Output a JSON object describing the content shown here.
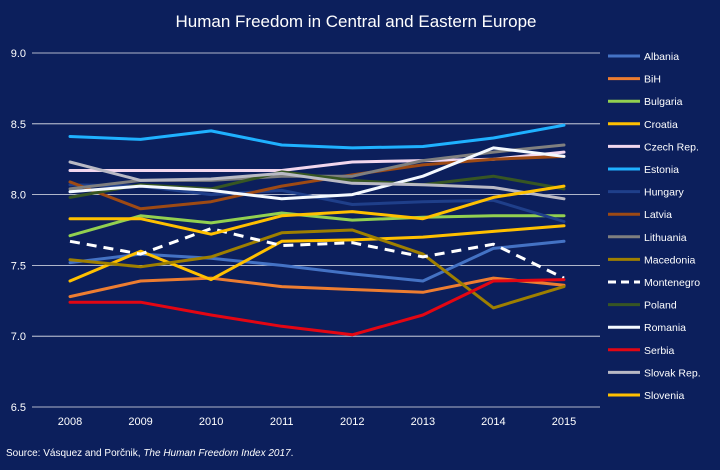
{
  "chart_data": {
    "type": "line",
    "title": "Human Freedom in Central and Eastern Europe",
    "x": [
      "2008",
      "2009",
      "2010",
      "2011",
      "2012",
      "2013",
      "2014",
      "2015"
    ],
    "ylim": [
      6.5,
      9.0
    ],
    "yticks": [
      "6.5",
      "7.0",
      "7.5",
      "8.0",
      "8.5",
      "9.0"
    ],
    "grid": true,
    "legend_position": "right",
    "series": [
      {
        "name": "Albania",
        "color": "#4472c4",
        "dash": false,
        "values": [
          7.52,
          7.58,
          7.55,
          7.5,
          7.44,
          7.39,
          7.62,
          7.67
        ]
      },
      {
        "name": "BiH",
        "color": "#ed7d31",
        "dash": false,
        "values": [
          7.28,
          7.39,
          7.41,
          7.35,
          7.33,
          7.31,
          7.41,
          7.36
        ]
      },
      {
        "name": "Bulgaria",
        "color": "#92d050",
        "dash": false,
        "values": [
          7.71,
          7.85,
          7.8,
          7.87,
          7.82,
          7.84,
          7.85,
          7.85
        ]
      },
      {
        "name": "Croatia",
        "color": "#ffc000",
        "dash": false,
        "values": [
          7.39,
          7.6,
          7.4,
          7.67,
          7.68,
          7.7,
          7.74,
          7.78
        ]
      },
      {
        "name": "Czech Rep.",
        "color": "#f2d7ee",
        "dash": false,
        "values": [
          8.17,
          8.17,
          8.17,
          8.17,
          8.23,
          8.24,
          8.25,
          8.3
        ]
      },
      {
        "name": "Estonia",
        "color": "#1fb1ff",
        "dash": false,
        "values": [
          8.41,
          8.39,
          8.45,
          8.35,
          8.33,
          8.34,
          8.4,
          8.49
        ]
      },
      {
        "name": "Hungary",
        "color": "#1f3f8a",
        "dash": false,
        "values": [
          8.07,
          8.06,
          8.0,
          8.03,
          7.93,
          7.95,
          7.96,
          7.81
        ]
      },
      {
        "name": "Latvia",
        "color": "#9e4a14",
        "dash": false,
        "values": [
          8.09,
          7.9,
          7.95,
          8.06,
          8.14,
          8.21,
          8.25,
          8.27
        ]
      },
      {
        "name": "Lithuania",
        "color": "#7f7f7f",
        "dash": false,
        "values": [
          8.04,
          8.1,
          8.1,
          8.13,
          8.13,
          8.24,
          8.3,
          8.35
        ]
      },
      {
        "name": "Macedonia",
        "color": "#9e7f00",
        "dash": false,
        "values": [
          7.54,
          7.49,
          7.56,
          7.73,
          7.75,
          7.58,
          7.2,
          7.35
        ]
      },
      {
        "name": "Montenegro",
        "color": "#ffffff",
        "dash": true,
        "values": [
          7.67,
          7.58,
          7.76,
          7.64,
          7.66,
          7.56,
          7.65,
          7.41
        ]
      },
      {
        "name": "Poland",
        "color": "#375623",
        "dash": false,
        "values": [
          7.98,
          8.07,
          8.04,
          8.16,
          8.1,
          8.07,
          8.13,
          8.04
        ]
      },
      {
        "name": "Romania",
        "color": "#f4f9ff",
        "dash": false,
        "values": [
          8.02,
          8.06,
          8.03,
          7.97,
          8.0,
          8.13,
          8.33,
          8.27
        ]
      },
      {
        "name": "Serbia",
        "color": "#e30613",
        "dash": false,
        "values": [
          7.24,
          7.24,
          7.15,
          7.07,
          7.01,
          7.15,
          7.39,
          7.4
        ]
      },
      {
        "name": "Slovak Rep.",
        "color": "#b9b9c4",
        "dash": false,
        "values": [
          8.23,
          8.1,
          8.11,
          8.15,
          8.08,
          8.07,
          8.05,
          7.97
        ]
      },
      {
        "name": "Slovenia",
        "color": "#ffc000",
        "dash": false,
        "values": [
          7.83,
          7.83,
          7.72,
          7.85,
          7.88,
          7.83,
          7.98,
          8.06
        ]
      }
    ]
  },
  "source": {
    "prefix": "Source: Vásquez and Porčnik, ",
    "italic": "The Human Freedom Index 2017",
    "suffix": "."
  }
}
